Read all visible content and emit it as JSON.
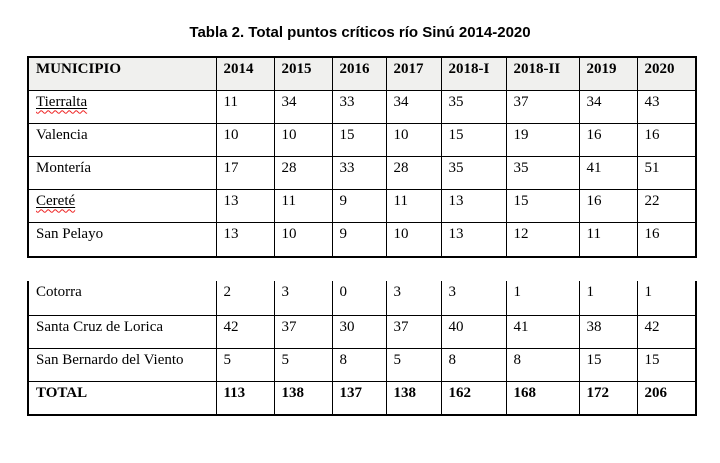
{
  "title": "Tabla 2. Total puntos críticos río Sinú 2014-2020",
  "table": {
    "columns": [
      "MUNICIPIO",
      "2014",
      "2015",
      "2016",
      "2017",
      "2018-I",
      "2018-II",
      "2019",
      "2020"
    ],
    "rows_part1": [
      {
        "name": "Tierralta",
        "spellcheck": true,
        "values": [
          11,
          34,
          33,
          34,
          35,
          37,
          34,
          43
        ]
      },
      {
        "name": "Valencia",
        "spellcheck": false,
        "values": [
          10,
          10,
          15,
          10,
          15,
          19,
          16,
          16
        ]
      },
      {
        "name": "Montería",
        "spellcheck": false,
        "values": [
          17,
          28,
          33,
          28,
          35,
          35,
          41,
          51
        ]
      },
      {
        "name": "Cereté",
        "spellcheck": true,
        "values": [
          13,
          11,
          9,
          11,
          13,
          15,
          16,
          22
        ]
      },
      {
        "name": "San Pelayo",
        "spellcheck": false,
        "values": [
          13,
          10,
          9,
          10,
          13,
          12,
          11,
          16
        ]
      }
    ],
    "rows_part2": [
      {
        "name": "Cotorra",
        "spellcheck": false,
        "values": [
          2,
          3,
          0,
          3,
          3,
          1,
          1,
          1
        ]
      },
      {
        "name": "Santa Cruz de Lorica",
        "spellcheck": false,
        "values": [
          42,
          37,
          30,
          37,
          40,
          41,
          38,
          42
        ]
      },
      {
        "name": "San Bernardo del Viento",
        "spellcheck": false,
        "values": [
          5,
          5,
          8,
          5,
          8,
          8,
          15,
          15
        ]
      }
    ],
    "total_row": {
      "label": "TOTAL",
      "values": [
        113,
        138,
        137,
        138,
        162,
        168,
        172,
        206
      ]
    }
  },
  "colors": {
    "header_bg": "#f0f0ee",
    "border": "#000000",
    "spellcheck_underline": "#ee2222",
    "text": "#000000"
  }
}
